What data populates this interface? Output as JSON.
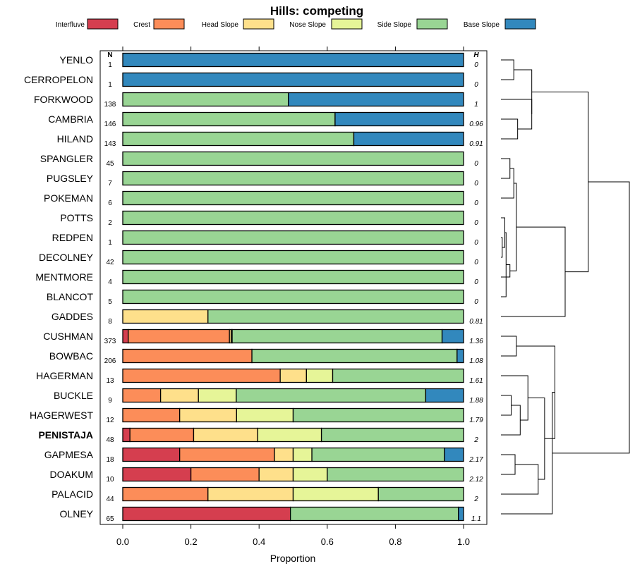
{
  "chart_data": {
    "type": "bar",
    "orientation": "horizontal-stacked",
    "title": "Hills: competing",
    "xlabel": "Proportion",
    "xlim": [
      0,
      1
    ],
    "xticks": [
      "0.0",
      "0.2",
      "0.4",
      "0.6",
      "0.8",
      "1.0"
    ],
    "column_headers": {
      "n": "N",
      "h": "H"
    },
    "legend": [
      {
        "name": "Interfluve",
        "color": "#d53e4f"
      },
      {
        "name": "Crest",
        "color": "#fc8d59"
      },
      {
        "name": "Head Slope",
        "color": "#fee08b"
      },
      {
        "name": "Nose Slope",
        "color": "#e6f598"
      },
      {
        "name": "Side Slope",
        "color": "#99d594"
      },
      {
        "name": "Base Slope",
        "color": "#3288bd"
      }
    ],
    "categories": [
      "YENLO",
      "CERROPELON",
      "FORKWOOD",
      "CAMBRIA",
      "HILAND",
      "SPANGLER",
      "PUGSLEY",
      "POKEMAN",
      "POTTS",
      "REDPEN",
      "DECOLNEY",
      "MENTMORE",
      "BLANCOT",
      "GADDES",
      "CUSHMAN",
      "BOWBAC",
      "HAGERMAN",
      "BUCKLE",
      "HAGERWEST",
      "PENISTAJA",
      "GAPMESA",
      "DOAKUM",
      "PALACID",
      "OLNEY"
    ],
    "highlight": "PENISTAJA",
    "n": [
      "1",
      "1",
      "138",
      "146",
      "143",
      "45",
      "7",
      "6",
      "2",
      "1",
      "42",
      "4",
      "5",
      "8",
      "373",
      "206",
      "13",
      "9",
      "12",
      "48",
      "18",
      "10",
      "44",
      "65"
    ],
    "h": [
      "0",
      "0",
      "1",
      "0.96",
      "0.91",
      "0",
      "0",
      "0",
      "0",
      "0",
      "0",
      "0",
      "0",
      "0.81",
      "1.36",
      "1.08",
      "1.61",
      "1.88",
      "1.79",
      "2",
      "2.17",
      "2.12",
      "2",
      "1.1"
    ],
    "series": [
      {
        "name": "Interfluve",
        "values": [
          0,
          0,
          0,
          0,
          0,
          0,
          0,
          0,
          0,
          0,
          0,
          0,
          0,
          0,
          0.016,
          0,
          0,
          0,
          0,
          0.021,
          0.167,
          0.2,
          0,
          0.492
        ]
      },
      {
        "name": "Crest",
        "values": [
          0,
          0,
          0,
          0,
          0,
          0,
          0,
          0,
          0,
          0,
          0,
          0,
          0,
          0,
          0.297,
          0.379,
          0.462,
          0.111,
          0.167,
          0.187,
          0.278,
          0.2,
          0.25,
          0
        ]
      },
      {
        "name": "Head Slope",
        "values": [
          0,
          0,
          0,
          0,
          0,
          0,
          0,
          0,
          0,
          0,
          0,
          0,
          0,
          0.25,
          0.005,
          0,
          0.077,
          0.111,
          0.167,
          0.188,
          0.055,
          0.1,
          0.25,
          0
        ]
      },
      {
        "name": "Nose Slope",
        "values": [
          0,
          0,
          0,
          0,
          0,
          0,
          0,
          0,
          0,
          0,
          0,
          0,
          0,
          0,
          0.003,
          0,
          0.077,
          0.111,
          0.166,
          0.187,
          0.055,
          0.1,
          0.25,
          0
        ]
      },
      {
        "name": "Side Slope",
        "values": [
          0,
          0,
          0.486,
          0.623,
          0.678,
          1,
          1,
          1,
          1,
          1,
          1,
          1,
          1,
          0.75,
          0.616,
          0.602,
          0.384,
          0.556,
          0.5,
          0.417,
          0.389,
          0.4,
          0.25,
          0.493
        ]
      },
      {
        "name": "Base Slope",
        "values": [
          1,
          1,
          0.514,
          0.377,
          0.322,
          0,
          0,
          0,
          0,
          0,
          0,
          0,
          0,
          0,
          0.063,
          0.019,
          0,
          0.111,
          0,
          0,
          0.056,
          0,
          0,
          0.015
        ]
      }
    ],
    "dendrogram": {
      "method": "hierarchical clustering",
      "leaf_order": [
        "YENLO",
        "CERROPELON",
        "FORKWOOD",
        "CAMBRIA",
        "HILAND",
        "SPANGLER",
        "PUGSLEY",
        "POKEMAN",
        "POTTS",
        "REDPEN",
        "DECOLNEY",
        "MENTMORE",
        "BLANCOT",
        "GADDES",
        "CUSHMAN",
        "BOWBAC",
        "HAGERMAN",
        "BUCKLE",
        "HAGERWEST",
        "PENISTAJA",
        "GAPMESA",
        "DOAKUM",
        "PALACID",
        "OLNEY"
      ],
      "merges": [
        [
          0,
          1,
          0.1
        ],
        [
          3,
          4,
          0.13
        ],
        [
          2,
          25,
          0.24
        ],
        [
          24,
          26,
          0.24
        ],
        [
          9,
          10,
          0.01
        ],
        [
          8,
          28,
          0.03
        ],
        [
          29,
          12,
          0.04
        ],
        [
          30,
          11,
          0.07
        ],
        [
          5,
          6,
          0.07
        ],
        [
          7,
          32,
          0.1
        ],
        [
          33,
          31,
          0.12
        ],
        [
          34,
          13,
          0.5
        ],
        [
          27,
          35,
          0.68
        ],
        [
          14,
          15,
          0.12
        ],
        [
          17,
          18,
          0.08
        ],
        [
          38,
          19,
          0.15
        ],
        [
          16,
          39,
          0.21
        ],
        [
          20,
          21,
          0.11
        ],
        [
          41,
          22,
          0.29
        ],
        [
          40,
          42,
          0.34
        ],
        [
          37,
          43,
          0.42
        ],
        [
          44,
          23,
          0.4
        ],
        [
          36,
          45,
          1.0
        ]
      ]
    }
  }
}
